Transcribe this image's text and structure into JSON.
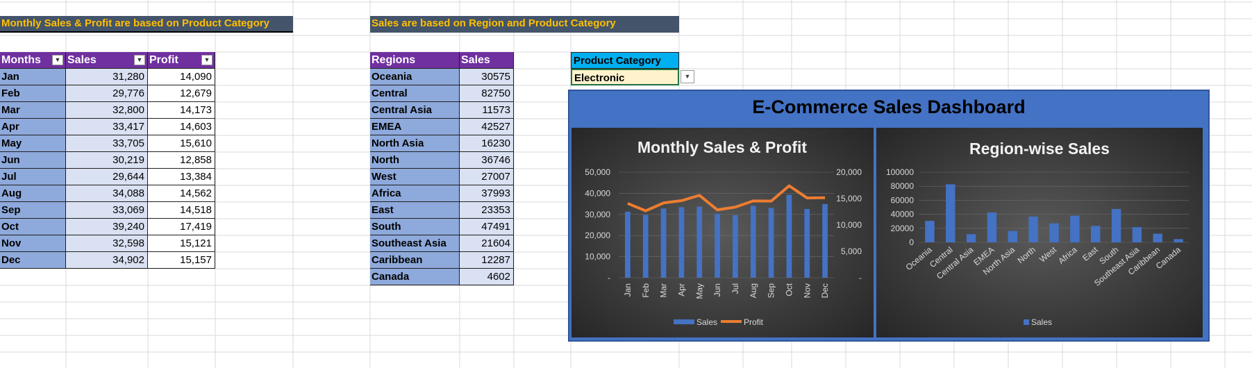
{
  "monthly_section": {
    "banner": "Monthly Sales & Profit are based on Product Category",
    "headers": [
      "Months",
      "Sales",
      "Profit"
    ],
    "rows": [
      [
        "Jan",
        "31,280",
        "14,090"
      ],
      [
        "Feb",
        "29,776",
        "12,679"
      ],
      [
        "Mar",
        "32,800",
        "14,173"
      ],
      [
        "Apr",
        "33,417",
        "14,603"
      ],
      [
        "May",
        "33,705",
        "15,610"
      ],
      [
        "Jun",
        "30,219",
        "12,858"
      ],
      [
        "Jul",
        "29,644",
        "13,384"
      ],
      [
        "Aug",
        "34,088",
        "14,562"
      ],
      [
        "Sep",
        "33,069",
        "14,518"
      ],
      [
        "Oct",
        "39,240",
        "17,419"
      ],
      [
        "Nov",
        "32,598",
        "15,121"
      ],
      [
        "Dec",
        "34,902",
        "15,157"
      ]
    ]
  },
  "region_section": {
    "banner": "Sales are based on Region and Product Category",
    "headers": [
      "Regions",
      "Sales"
    ],
    "rows": [
      [
        "Oceania",
        "30575"
      ],
      [
        "Central",
        "82750"
      ],
      [
        "Central Asia",
        "11573"
      ],
      [
        "EMEA",
        "42527"
      ],
      [
        "North Asia",
        "16230"
      ],
      [
        "North",
        "36746"
      ],
      [
        "West",
        "27007"
      ],
      [
        "Africa",
        "37993"
      ],
      [
        "East",
        "23353"
      ],
      [
        "South",
        "47491"
      ],
      [
        "Southeast Asia",
        "21604"
      ],
      [
        "Caribbean",
        "12287"
      ],
      [
        "Canada",
        "4602"
      ]
    ]
  },
  "product_filter": {
    "label": "Product Category",
    "value": "Electronic"
  },
  "dashboard": {
    "title": "E-Commerce Sales Dashboard"
  },
  "colors": {
    "header_purple": "#7030A0",
    "banner_bg": "#44546A",
    "banner_text": "#FFC000",
    "label_blue": "#8EA9DB",
    "filter_cyan": "#00B0F0",
    "filter_cell": "#FFF2CC",
    "dashboard_blue": "#4472C4",
    "bar_blue": "#4472C4",
    "line_orange": "#ED7D31"
  },
  "chart_data": [
    {
      "type": "bar+line",
      "title": "Monthly Sales & Profit",
      "categories": [
        "Jan",
        "Feb",
        "Mar",
        "Apr",
        "May",
        "Jun",
        "Jul",
        "Aug",
        "Sep",
        "Oct",
        "Nov",
        "Dec"
      ],
      "series": [
        {
          "name": "Sales",
          "kind": "bar",
          "axis": "primary",
          "values": [
            31280,
            29776,
            32800,
            33417,
            33705,
            30219,
            29644,
            34088,
            33069,
            39240,
            32598,
            34902
          ]
        },
        {
          "name": "Profit",
          "kind": "line",
          "axis": "secondary",
          "values": [
            14090,
            12679,
            14173,
            14603,
            15610,
            12858,
            13384,
            14562,
            14518,
            17419,
            15121,
            15157
          ]
        }
      ],
      "y_ticks": [
        "-",
        "10,000",
        "20,000",
        "30,000",
        "40,000",
        "50,000"
      ],
      "ylim": [
        0,
        50000
      ],
      "y2_ticks": [
        "-",
        "5,000",
        "10,000",
        "15,000",
        "20,000"
      ],
      "y2lim": [
        0,
        20000
      ],
      "legend": "bottom"
    },
    {
      "type": "bar",
      "title": "Region-wise Sales",
      "categories": [
        "Oceania",
        "Central",
        "Central Asia",
        "EMEA",
        "North Asia",
        "North",
        "West",
        "Africa",
        "East",
        "South",
        "Southeast Asia",
        "Caribbean",
        "Canada"
      ],
      "series": [
        {
          "name": "Sales",
          "values": [
            30575,
            82750,
            11573,
            42527,
            16230,
            36746,
            27007,
            37993,
            23353,
            47491,
            21604,
            12287,
            4602
          ]
        }
      ],
      "y_ticks": [
        "0",
        "20000",
        "40000",
        "60000",
        "80000",
        "100000"
      ],
      "ylim": [
        0,
        100000
      ],
      "legend": "bottom"
    }
  ]
}
